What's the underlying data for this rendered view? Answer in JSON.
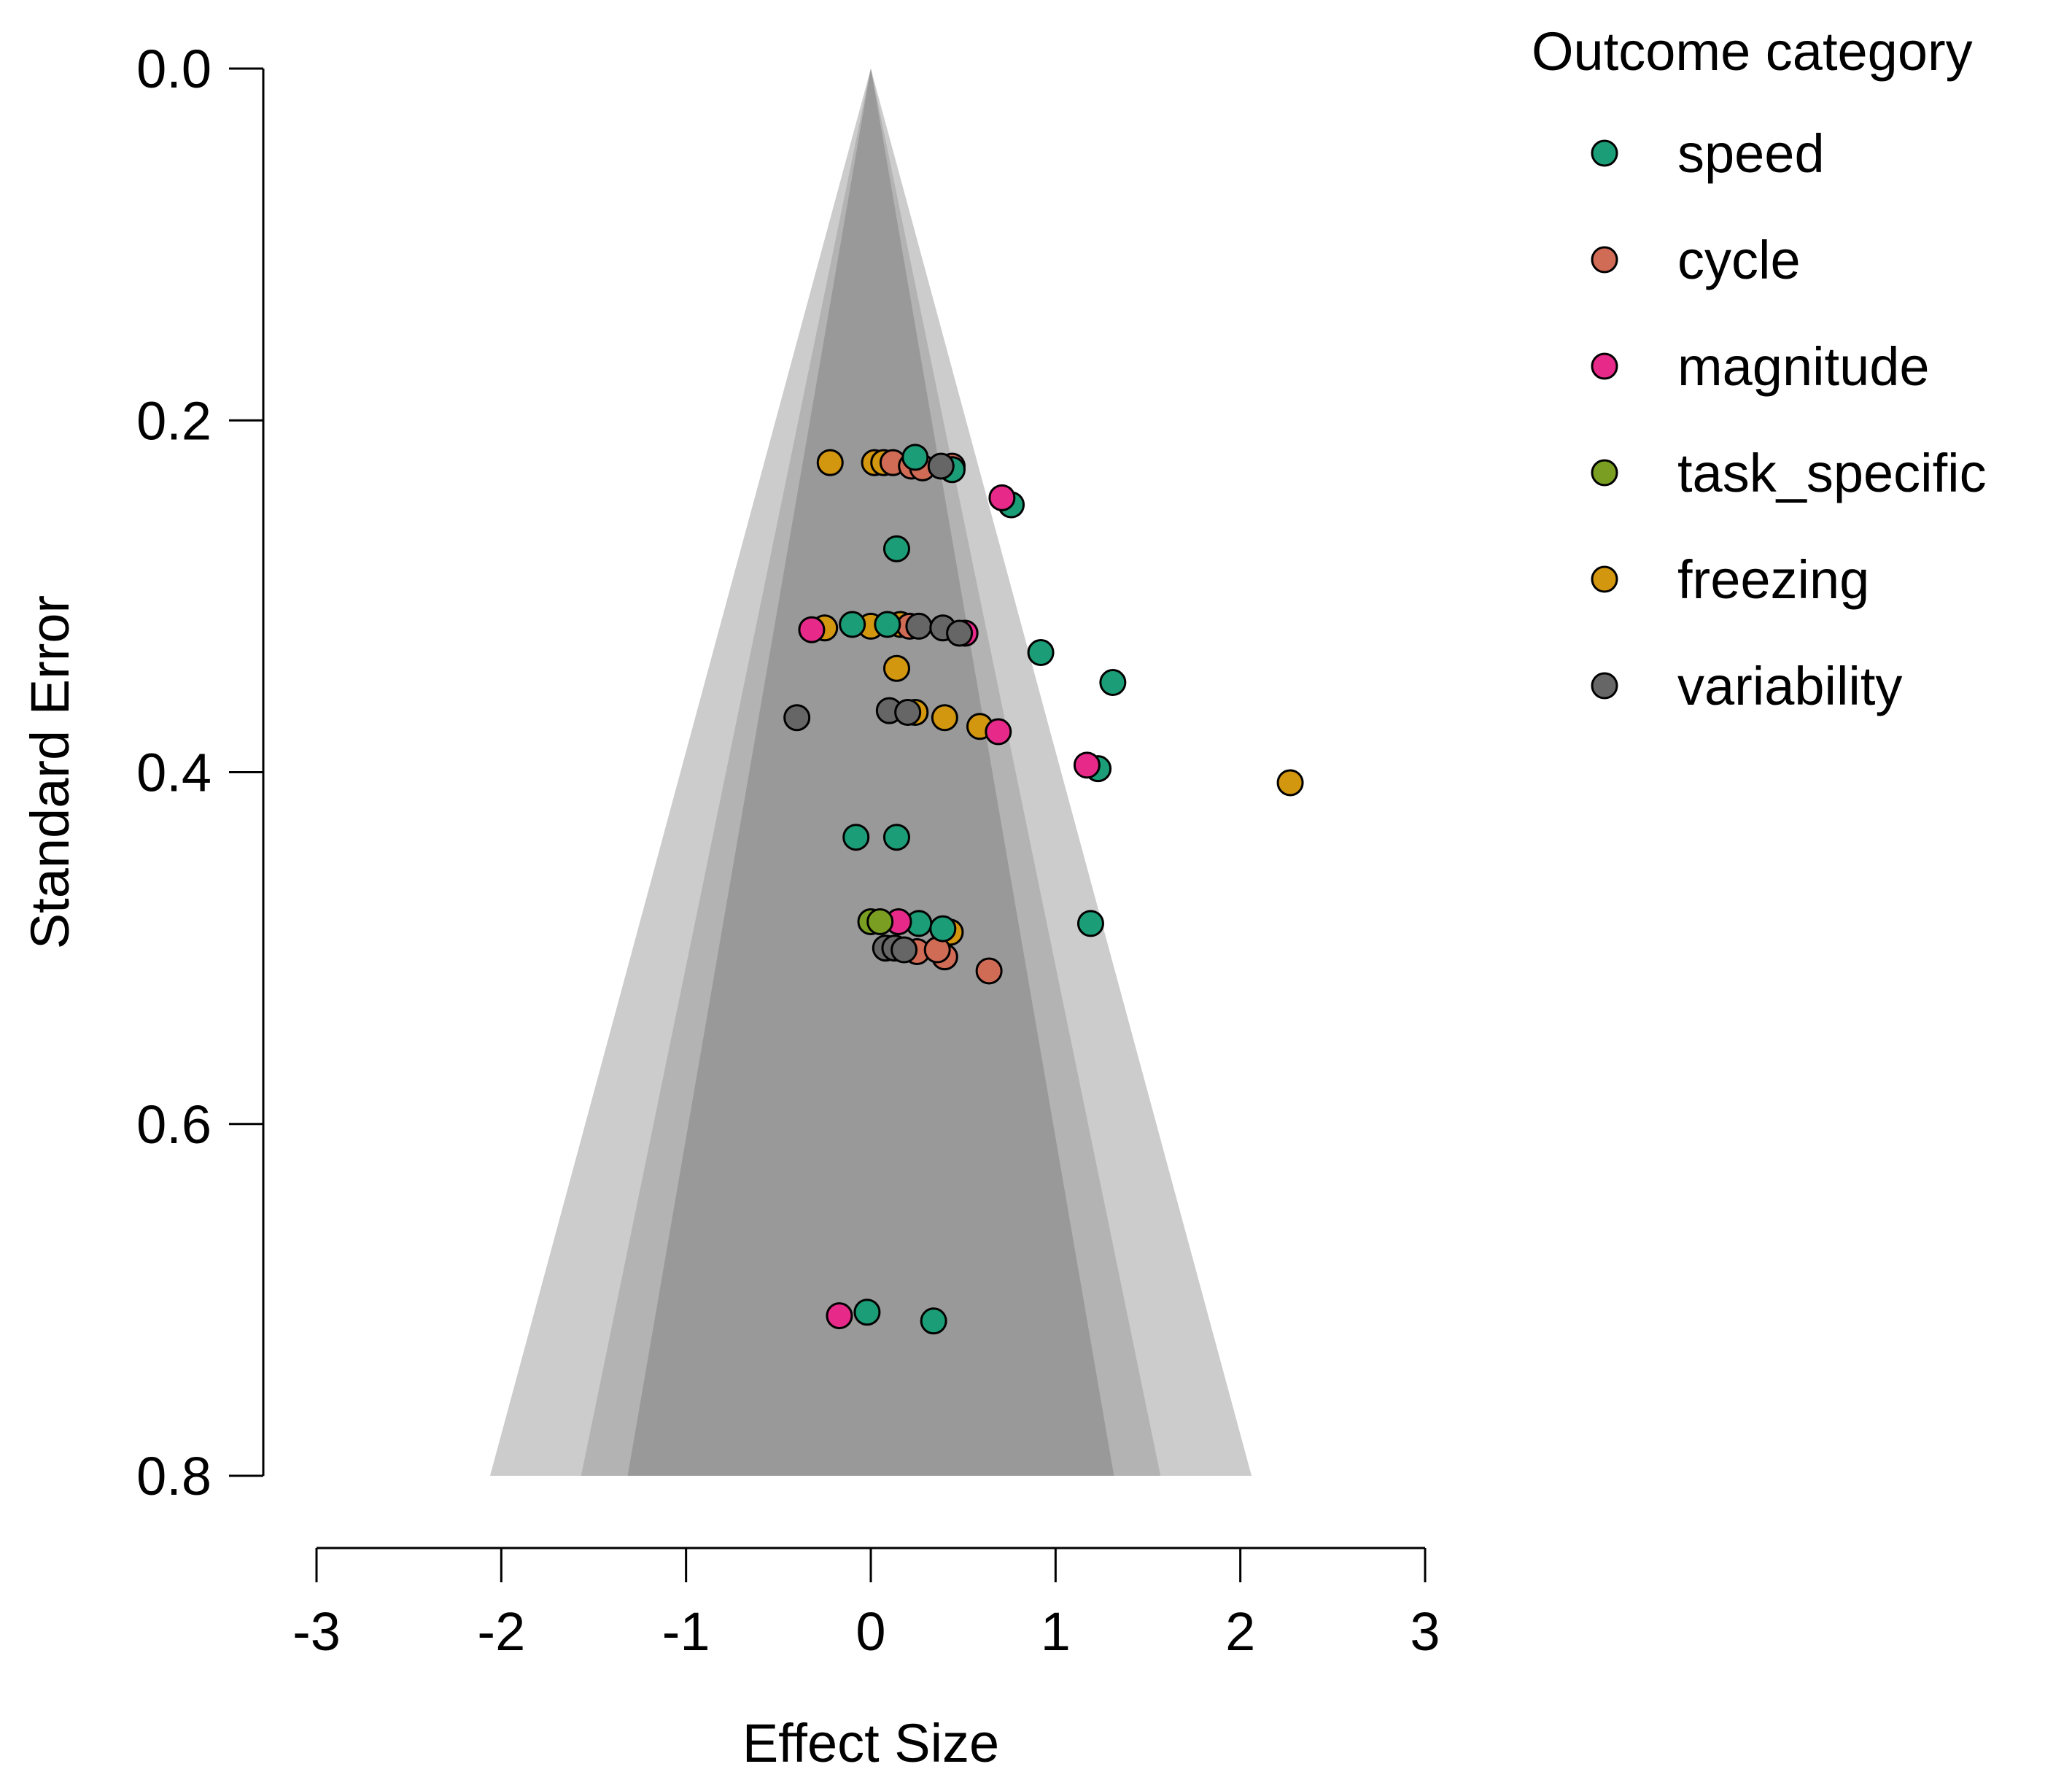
{
  "chart_data": {
    "type": "scatter",
    "subtype": "funnel",
    "title": "",
    "xlabel": "Effect Size",
    "ylabel": "Standard Error",
    "xlim": [
      -3,
      3
    ],
    "ylim": [
      0.0,
      0.8
    ],
    "y_inverted": true,
    "x_ticks": [
      -3,
      -2,
      -1,
      0,
      1,
      2,
      3
    ],
    "x_tick_labels": [
      "-3",
      "-2",
      "-1",
      "0",
      "1",
      "2",
      "3"
    ],
    "y_ticks": [
      0.0,
      0.2,
      0.4,
      0.6,
      0.8
    ],
    "y_tick_labels": [
      "0.0",
      "0.2",
      "0.4",
      "0.6",
      "0.8"
    ],
    "grid": false,
    "funnel": {
      "center": 0,
      "se_max": 0.8,
      "regions": [
        {
          "z": 2.576,
          "color": "#cccccc"
        },
        {
          "z": 1.96,
          "color": "#b3b3b3"
        },
        {
          "z": 1.645,
          "color": "#999999"
        }
      ]
    },
    "legend": {
      "title": "Outcome category",
      "position": "top-right",
      "entries": [
        {
          "name": "speed",
          "color": "#1b9e77"
        },
        {
          "name": "cycle",
          "color": "#d06b55"
        },
        {
          "name": "magnitude",
          "color": "#e7298a"
        },
        {
          "name": "task_specific",
          "color": "#7a9e21"
        },
        {
          "name": "freezing",
          "color": "#d3960f"
        },
        {
          "name": "variability",
          "color": "#666666"
        }
      ]
    },
    "series": [
      {
        "name": "freezing",
        "points": [
          [
            -0.22,
            0.224
          ],
          [
            0.02,
            0.224
          ],
          [
            0.07,
            0.224
          ],
          [
            0.14,
            0.341
          ],
          [
            -0.25,
            0.318
          ],
          [
            0.0,
            0.317
          ],
          [
            0.16,
            0.316
          ],
          [
            0.24,
            0.366
          ],
          [
            0.4,
            0.369
          ],
          [
            0.59,
            0.374
          ],
          [
            2.27,
            0.406
          ],
          [
            0.43,
            0.491
          ]
        ]
      },
      {
        "name": "cycle",
        "points": [
          [
            0.12,
            0.224
          ],
          [
            0.22,
            0.226
          ],
          [
            0.28,
            0.227
          ],
          [
            0.44,
            0.226
          ],
          [
            0.21,
            0.317
          ],
          [
            0.25,
            0.502
          ],
          [
            0.4,
            0.505
          ],
          [
            0.64,
            0.513
          ],
          [
            0.36,
            0.501
          ]
        ]
      },
      {
        "name": "speed",
        "points": [
          [
            0.24,
            0.221
          ],
          [
            0.44,
            0.228
          ],
          [
            0.76,
            0.248
          ],
          [
            0.14,
            0.273
          ],
          [
            -0.1,
            0.316
          ],
          [
            0.09,
            0.316
          ],
          [
            0.92,
            0.332
          ],
          [
            1.31,
            0.349
          ],
          [
            1.23,
            0.398
          ],
          [
            -0.08,
            0.437
          ],
          [
            0.14,
            0.437
          ],
          [
            0.26,
            0.486
          ],
          [
            0.39,
            0.489
          ],
          [
            1.19,
            0.486
          ],
          [
            -0.02,
            0.707
          ],
          [
            0.34,
            0.712
          ]
        ]
      },
      {
        "name": "magnitude",
        "points": [
          [
            0.71,
            0.244
          ],
          [
            -0.32,
            0.319
          ],
          [
            0.51,
            0.321
          ],
          [
            0.69,
            0.377
          ],
          [
            1.17,
            0.396
          ],
          [
            0.15,
            0.485
          ],
          [
            -0.17,
            0.709
          ]
        ]
      },
      {
        "name": "task_specific",
        "points": [
          [
            0.0,
            0.485
          ],
          [
            0.05,
            0.485
          ]
        ]
      },
      {
        "name": "variability",
        "points": [
          [
            0.26,
            0.317
          ],
          [
            0.39,
            0.318
          ],
          [
            0.48,
            0.321
          ],
          [
            -0.4,
            0.369
          ],
          [
            0.1,
            0.365
          ],
          [
            0.2,
            0.366
          ],
          [
            0.38,
            0.226
          ],
          [
            0.08,
            0.5
          ],
          [
            0.13,
            0.5
          ],
          [
            0.18,
            0.501
          ]
        ]
      }
    ]
  }
}
